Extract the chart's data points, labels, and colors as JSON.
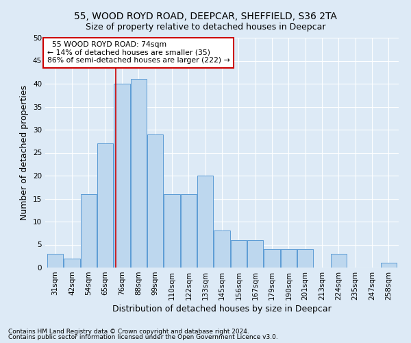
{
  "title1": "55, WOOD ROYD ROAD, DEEPCAR, SHEFFIELD, S36 2TA",
  "title2": "Size of property relative to detached houses in Deepcar",
  "xlabel": "Distribution of detached houses by size in Deepcar",
  "ylabel": "Number of detached properties",
  "footnote1": "Contains HM Land Registry data © Crown copyright and database right 2024.",
  "footnote2": "Contains public sector information licensed under the Open Government Licence v3.0.",
  "categories": [
    "31sqm",
    "42sqm",
    "54sqm",
    "65sqm",
    "76sqm",
    "88sqm",
    "99sqm",
    "110sqm",
    "122sqm",
    "133sqm",
    "145sqm",
    "156sqm",
    "167sqm",
    "179sqm",
    "190sqm",
    "201sqm",
    "213sqm",
    "224sqm",
    "235sqm",
    "247sqm",
    "258sqm"
  ],
  "values": [
    3,
    2,
    16,
    27,
    40,
    41,
    29,
    16,
    16,
    20,
    8,
    6,
    6,
    4,
    4,
    4,
    0,
    3,
    0,
    0,
    1
  ],
  "bar_color": "#bdd7ee",
  "bar_edge_color": "#5b9bd5",
  "annotation_text1": "  55 WOOD ROYD ROAD: 74sqm",
  "annotation_text2": "← 14% of detached houses are smaller (35)",
  "annotation_text3": "86% of semi-detached houses are larger (222) →",
  "annotation_box_color": "#ffffff",
  "annotation_box_edge": "#cc0000",
  "vline_color": "#cc0000",
  "vline_x": 3.65,
  "ylim": [
    0,
    50
  ],
  "yticks": [
    0,
    5,
    10,
    15,
    20,
    25,
    30,
    35,
    40,
    45,
    50
  ],
  "background_color": "#ddeaf6",
  "grid_color": "#ffffff",
  "title_fontsize": 10,
  "subtitle_fontsize": 9,
  "axis_label_fontsize": 9,
  "tick_fontsize": 7.5,
  "footnote_fontsize": 6.5
}
